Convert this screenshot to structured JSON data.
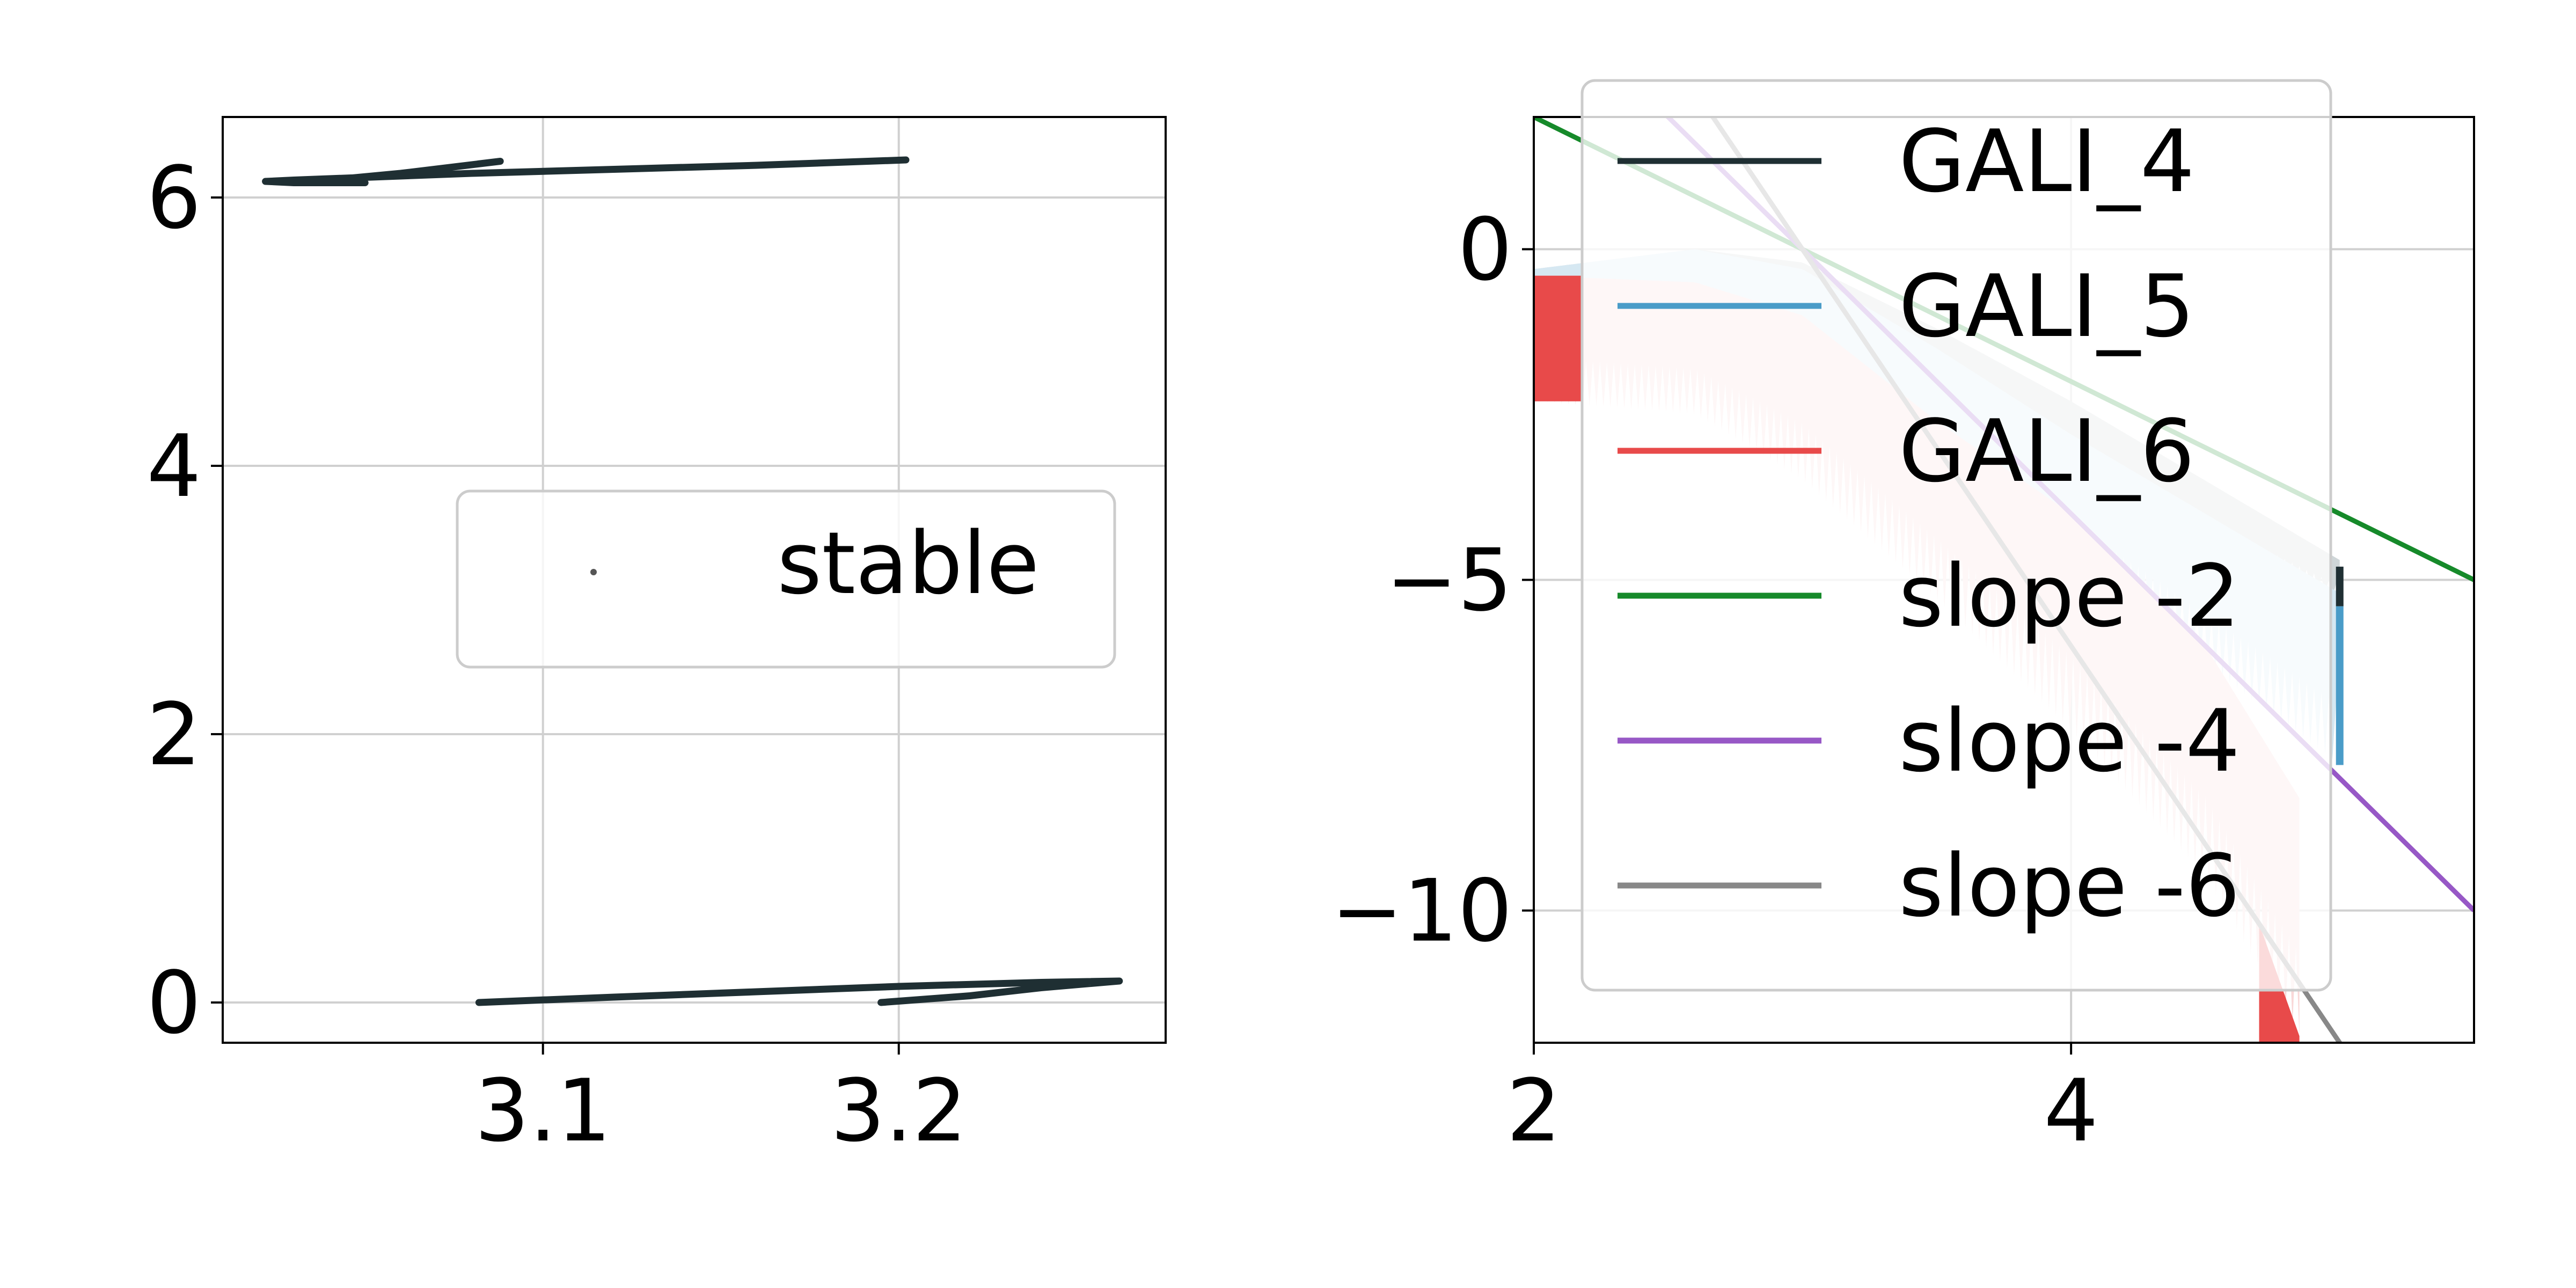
{
  "chart_data": [
    {
      "type": "scatter",
      "title": "",
      "xlabel": "",
      "ylabel": "",
      "xlim": [
        3.01,
        3.275
      ],
      "ylim": [
        -0.3,
        6.6
      ],
      "xticks": [
        3.1,
        3.2
      ],
      "xtick_labels": [
        "3.1",
        "3.2"
      ],
      "yticks": [
        0,
        2,
        4,
        6
      ],
      "ytick_labels": [
        "0",
        "2",
        "4",
        "6"
      ],
      "grid": true,
      "legend": {
        "placement": "center-right",
        "entries": [
          "stable"
        ]
      },
      "series": [
        {
          "name": "stable",
          "color": "#1f2f33",
          "points": [
            [
              3.082,
              0.0
            ],
            [
              3.12,
              0.04
            ],
            [
              3.16,
              0.08
            ],
            [
              3.2,
              0.12
            ],
            [
              3.24,
              0.15
            ],
            [
              3.262,
              0.16
            ],
            [
              3.24,
              0.11
            ],
            [
              3.22,
              0.05
            ],
            [
              3.195,
              0.0
            ],
            [
              3.202,
              6.28
            ],
            [
              3.16,
              6.24
            ],
            [
              3.12,
              6.21
            ],
            [
              3.08,
              6.18
            ],
            [
              3.05,
              6.15
            ],
            [
              3.03,
              6.13
            ],
            [
              3.022,
              6.12
            ],
            [
              3.03,
              6.11
            ],
            [
              3.05,
              6.11
            ],
            [
              3.04,
              6.13
            ],
            [
              3.06,
              6.18
            ],
            [
              3.088,
              6.27
            ]
          ]
        }
      ]
    },
    {
      "type": "line",
      "title": "",
      "xlabel": "",
      "ylabel": "",
      "xlim": [
        2,
        5.5
      ],
      "ylim": [
        -12,
        2
      ],
      "xticks": [
        2,
        4
      ],
      "xtick_labels": [
        "2",
        "4"
      ],
      "yticks": [
        0,
        -5,
        -10
      ],
      "ytick_labels": [
        "0",
        "−5",
        "−10"
      ],
      "grid": true,
      "legend": {
        "placement": "upper-center",
        "entries": [
          "GALI_4",
          "GALI_5",
          "GALI_6",
          "slope -2",
          "slope -4",
          "slope -6"
        ]
      },
      "series": [
        {
          "name": "GALI_4",
          "color": "#1f2f33",
          "x": [
            2.0,
            2.6,
            3.0,
            3.5,
            4.0,
            4.5,
            5.0
          ],
          "upper": [
            -0.3,
            0.0,
            -0.2,
            -1.2,
            -2.3,
            -3.5,
            -4.7
          ],
          "lower": [
            -0.4,
            -1.0,
            -1.5,
            -2.5,
            -3.5,
            -4.4,
            -5.3
          ]
        },
        {
          "name": "GALI_5",
          "color": "#4a9cc8",
          "x": [
            2.0,
            2.6,
            3.0,
            3.5,
            4.0,
            4.5,
            5.0
          ],
          "upper": [
            -0.3,
            0.0,
            -0.3,
            -1.5,
            -2.8,
            -4.0,
            -5.2
          ],
          "lower": [
            -0.6,
            -1.6,
            -2.4,
            -3.5,
            -4.8,
            -6.3,
            -7.8
          ]
        },
        {
          "name": "GALI_6",
          "color": "#e84a4a",
          "x": [
            2.0,
            2.6,
            3.0,
            3.5,
            4.0,
            4.5,
            4.85
          ],
          "upper": [
            -0.4,
            -0.5,
            -1.0,
            -2.6,
            -4.0,
            -6.0,
            -8.3
          ],
          "lower": [
            -2.3,
            -2.5,
            -3.5,
            -5.3,
            -7.3,
            -9.5,
            -11.9
          ]
        },
        {
          "name": "slope -2",
          "color": "#168a2a",
          "x": [
            2,
            5.5
          ],
          "y": [
            2.0,
            -5.0
          ]
        },
        {
          "name": "slope -4",
          "color": "#9758c6",
          "x": [
            2,
            5.5
          ],
          "y": [
            4.0,
            -10.0
          ]
        },
        {
          "name": "slope -6",
          "color": "#888888",
          "x": [
            2,
            5.5
          ],
          "y": [
            6.0,
            -15.0
          ]
        }
      ]
    }
  ]
}
